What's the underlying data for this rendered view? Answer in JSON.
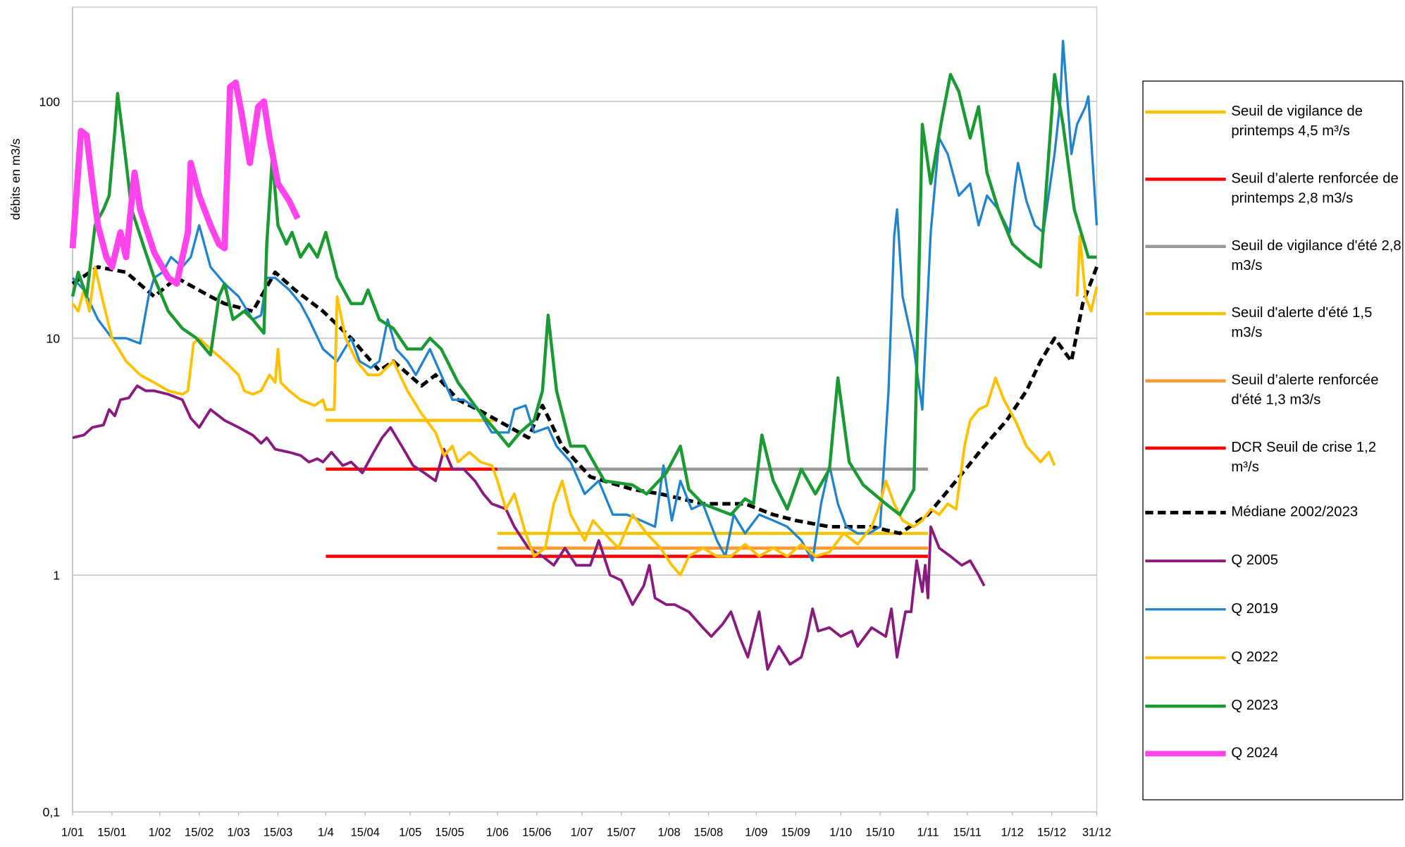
{
  "chart_data": {
    "type": "line",
    "y_label": "débits en m3/s",
    "y_log": true,
    "grid": true,
    "xlim": [
      1,
      365
    ],
    "ylim": [
      0.1,
      250
    ],
    "yticks": [
      {
        "value": 0.1,
        "label": "0,1"
      },
      1,
      10,
      100
    ],
    "xticks": [
      {
        "value": 1,
        "label": "1/01"
      },
      {
        "value": 15,
        "label": "15/01"
      },
      {
        "value": 32,
        "label": "1/02"
      },
      {
        "value": 46,
        "label": "15/02"
      },
      {
        "value": 60,
        "label": "1/03"
      },
      {
        "value": 74,
        "label": "15/03"
      },
      {
        "value": 91,
        "label": "1/4"
      },
      {
        "value": 105,
        "label": "15/04"
      },
      {
        "value": 121,
        "label": "1/05"
      },
      {
        "value": 135,
        "label": "15/05"
      },
      {
        "value": 152,
        "label": "1/06"
      },
      {
        "value": 166,
        "label": "15/06"
      },
      {
        "value": 182,
        "label": "1/07"
      },
      {
        "value": 196,
        "label": "15/07"
      },
      {
        "value": 213,
        "label": "1/08"
      },
      {
        "value": 227,
        "label": "15/08"
      },
      {
        "value": 244,
        "label": "1/09"
      },
      {
        "value": 258,
        "label": "15/09"
      },
      {
        "value": 274,
        "label": "1/10"
      },
      {
        "value": 288,
        "label": "15/10"
      },
      {
        "value": 305,
        "label": "1/11"
      },
      {
        "value": 319,
        "label": "15/11"
      },
      {
        "value": 335,
        "label": "1/12"
      },
      {
        "value": 349,
        "label": "15/12"
      },
      {
        "value": 365,
        "label": "31/12"
      }
    ],
    "series": [
      {
        "name": "Seuil de vigilance de printemps 4,5 m³/s",
        "color": "#f5c400",
        "x": [
          91,
          152
        ],
        "values": [
          4.5,
          4.5
        ]
      },
      {
        "name": "Seuil d’alerte renforcée de printemps 2,8 m3/s",
        "color": "#ff0000",
        "x": [
          91,
          152
        ],
        "values": [
          2.8,
          2.8
        ]
      },
      {
        "name": "Seuil de vigilance d'été 2,8 m3/s",
        "color": "#999999",
        "x": [
          152,
          305
        ],
        "values": [
          2.8,
          2.8
        ]
      },
      {
        "name": "Seuil d'alerte d'été 1,5 m3/s",
        "color": "#f5c400",
        "x": [
          152,
          305
        ],
        "values": [
          1.5,
          1.5
        ]
      },
      {
        "name": "Seuil d’alerte renforcée d'été 1,3 m3/s",
        "color": "#ff9933",
        "x": [
          152,
          305
        ],
        "values": [
          1.3,
          1.3
        ]
      },
      {
        "name": "DCR Seuil de crise 1,2 m³/s",
        "color": "#ff0000",
        "x": [
          91,
          305
        ],
        "values": [
          1.2,
          1.2
        ]
      },
      {
        "name": "Médiane 2002/2023",
        "color": "#000000",
        "dashed": true,
        "x": [
          1,
          10,
          20,
          30,
          38,
          50,
          55,
          65,
          73,
          80,
          90,
          100,
          110,
          115,
          125,
          130,
          138,
          145,
          155,
          163,
          168,
          175,
          185,
          200,
          210,
          225,
          240,
          250,
          258,
          270,
          285,
          295,
          305,
          315,
          325,
          333,
          340,
          345,
          350,
          356,
          360,
          365
        ],
        "values": [
          17,
          20,
          19,
          15,
          18,
          15,
          14,
          13,
          19,
          16,
          13,
          10,
          7.3,
          8,
          6.3,
          7,
          5.5,
          5,
          4.3,
          3.8,
          5.2,
          3.5,
          2.6,
          2.3,
          2.2,
          2.0,
          2.0,
          1.8,
          1.7,
          1.6,
          1.6,
          1.5,
          1.8,
          2.5,
          3.5,
          4.5,
          6,
          8,
          10,
          8,
          14,
          20
        ]
      },
      {
        "name": "Q 2005",
        "color": "#8b1a7e",
        "x": [
          1,
          5,
          8,
          12,
          14,
          16,
          18,
          21,
          24,
          27,
          30,
          35,
          40,
          43,
          46,
          50,
          55,
          60,
          65,
          68,
          70,
          73,
          78,
          82,
          85,
          88,
          90,
          93,
          97,
          100,
          104,
          108,
          111,
          114,
          118,
          122,
          126,
          130,
          133,
          136,
          140,
          144,
          147,
          150,
          155,
          158,
          163,
          168,
          172,
          176,
          180,
          185,
          188,
          192,
          196,
          200,
          204,
          206,
          208,
          212,
          215,
          220,
          225,
          228,
          232,
          235,
          238,
          241,
          245,
          248,
          252,
          256,
          260,
          262,
          264,
          266,
          270,
          274,
          278,
          280,
          285,
          290,
          292,
          294,
          297,
          299,
          301,
          303,
          304,
          305,
          306,
          309,
          313,
          317,
          320,
          323,
          325
        ],
        "values": [
          3.8,
          3.9,
          4.2,
          4.3,
          5,
          4.7,
          5.5,
          5.6,
          6.3,
          6,
          6,
          5.8,
          5.5,
          4.6,
          4.2,
          5,
          4.5,
          4.2,
          3.9,
          3.6,
          3.8,
          3.4,
          3.3,
          3.2,
          3,
          3.1,
          3,
          3.3,
          2.9,
          3,
          2.7,
          3.3,
          3.8,
          4.2,
          3.5,
          2.9,
          2.7,
          2.5,
          3.4,
          2.8,
          2.8,
          2.5,
          2.2,
          2,
          1.9,
          1.6,
          1.3,
          1.2,
          1.1,
          1.3,
          1.1,
          1.1,
          1.4,
          1,
          0.95,
          0.75,
          0.9,
          1.1,
          0.8,
          0.75,
          0.75,
          0.7,
          0.6,
          0.55,
          0.62,
          0.7,
          0.55,
          0.45,
          0.7,
          0.4,
          0.5,
          0.42,
          0.45,
          0.55,
          0.72,
          0.58,
          0.6,
          0.55,
          0.58,
          0.5,
          0.6,
          0.55,
          0.72,
          0.45,
          0.7,
          0.7,
          1.15,
          0.85,
          1.1,
          0.8,
          1.6,
          1.3,
          1.2,
          1.1,
          1.15,
          1,
          0.9
        ]
      },
      {
        "name": "Q 2019",
        "color": "#1f83d0",
        "x": [
          1,
          5,
          10,
          15,
          20,
          25,
          28,
          30,
          33,
          36,
          40,
          43,
          46,
          50,
          55,
          60,
          65,
          68,
          70,
          73,
          78,
          82,
          85,
          90,
          95,
          100,
          103,
          107,
          110,
          113,
          116,
          120,
          123,
          128,
          132,
          136,
          140,
          145,
          150,
          156,
          158,
          162,
          165,
          170,
          173,
          178,
          183,
          188,
          193,
          198,
          203,
          208,
          211,
          214,
          217,
          221,
          225,
          230,
          233,
          236,
          240,
          245,
          250,
          255,
          260,
          264,
          267,
          270,
          273,
          276,
          280,
          284,
          288,
          291,
          293,
          294,
          296,
          300,
          303,
          306,
          309,
          312,
          316,
          320,
          323,
          326,
          330,
          334,
          336,
          337,
          340,
          343,
          346,
          350,
          352,
          353,
          356,
          358,
          361,
          362,
          365
        ],
        "values": [
          18,
          16,
          12,
          10,
          10,
          9.5,
          15,
          18,
          19,
          22,
          20,
          22,
          30,
          20,
          17,
          15,
          12,
          12.5,
          18,
          18,
          16,
          14,
          12,
          9,
          8,
          10,
          8,
          7.5,
          8,
          12,
          9,
          8,
          7,
          9,
          7,
          5.5,
          5.5,
          5,
          4,
          4,
          5,
          5.2,
          4,
          4.2,
          3.5,
          3,
          2.2,
          2.5,
          1.8,
          1.8,
          1.7,
          1.6,
          2.9,
          1.7,
          2.5,
          1.9,
          2,
          1.4,
          1.2,
          1.8,
          1.5,
          1.8,
          1.7,
          1.6,
          1.4,
          1.15,
          2,
          2.9,
          2,
          1.6,
          1.5,
          1.5,
          1.6,
          6,
          27,
          35,
          15,
          9,
          5,
          28,
          70,
          60,
          40,
          45,
          30,
          40,
          35,
          28,
          45,
          55,
          38,
          30,
          28,
          60,
          100,
          180,
          60,
          80,
          95,
          105,
          30
        ]
      },
      {
        "name": "Q 2022",
        "color": "#ffc000",
        "x": [
          1,
          3,
          5,
          7,
          9,
          12,
          15,
          20,
          25,
          30,
          35,
          40,
          42,
          44,
          46,
          50,
          55,
          60,
          62,
          65,
          68,
          71,
          73,
          74,
          75,
          78,
          82,
          87,
          90,
          91,
          94,
          95,
          98,
          102,
          106,
          110,
          115,
          120,
          125,
          130,
          133,
          136,
          138,
          142,
          146,
          150,
          152,
          155,
          158,
          162,
          165,
          169,
          172,
          175,
          178,
          183,
          186,
          190,
          195,
          200,
          205,
          210,
          214,
          217,
          220,
          225,
          230,
          235,
          240,
          245,
          250,
          255,
          260,
          265,
          270,
          275,
          280,
          285,
          288,
          290,
          293,
          296,
          300,
          303,
          306,
          309,
          312,
          315,
          318,
          320,
          323,
          326,
          329,
          332,
          336,
          340,
          345,
          348,
          350,
          354,
          358,
          359,
          361,
          363,
          365
        ],
        "values": [
          14,
          13,
          16,
          13,
          20,
          14,
          10,
          8,
          7,
          6.5,
          6,
          5.8,
          6,
          9.5,
          10,
          9,
          8,
          7,
          6,
          5.8,
          6,
          7,
          6.5,
          9,
          6.5,
          6,
          5.5,
          5.2,
          5.5,
          5,
          5,
          15,
          10,
          8,
          7,
          7,
          8,
          6,
          4.8,
          4,
          3.2,
          3.5,
          3,
          3.3,
          3,
          2.9,
          2.5,
          1.9,
          2.2,
          1.5,
          1.2,
          1.3,
          2,
          2.5,
          1.8,
          1.4,
          1.7,
          1.5,
          1.3,
          1.8,
          1.5,
          1.3,
          1.1,
          1,
          1.2,
          1.3,
          1.2,
          1.2,
          1.35,
          1.2,
          1.3,
          1.2,
          1.35,
          1.2,
          1.25,
          1.5,
          1.35,
          1.6,
          2,
          2.5,
          2,
          1.7,
          1.6,
          1.7,
          1.9,
          1.8,
          2,
          1.9,
          3.5,
          4.5,
          5,
          5.2,
          6.8,
          5.5,
          4.5,
          3.5,
          3,
          3.3,
          2.9,
          null,
          15,
          27,
          15,
          13,
          16.5
        ]
      },
      {
        "name": "Q 2023",
        "color": "#1a9a32",
        "x": [
          1,
          3,
          6,
          9,
          12,
          14,
          16,
          17,
          19,
          22,
          26,
          30,
          35,
          40,
          45,
          50,
          53,
          55,
          58,
          62,
          65,
          69,
          70,
          72,
          74,
          77,
          79,
          82,
          85,
          88,
          91,
          95,
          100,
          104,
          106,
          110,
          115,
          120,
          125,
          128,
          132,
          138,
          145,
          152,
          156,
          160,
          165,
          168,
          170,
          173,
          178,
          183,
          190,
          200,
          205,
          212,
          217,
          220,
          225,
          235,
          240,
          243,
          246,
          250,
          255,
          260,
          265,
          270,
          273,
          277,
          282,
          290,
          295,
          300,
          303,
          306,
          310,
          313,
          316,
          320,
          323,
          326,
          330,
          335,
          340,
          345,
          350,
          353,
          357,
          362,
          365
        ],
        "values": [
          15,
          19,
          15,
          30,
          35,
          40,
          75,
          108,
          70,
          35,
          25,
          18,
          13,
          11,
          10,
          8.5,
          15,
          17,
          12,
          13,
          12,
          10.5,
          25,
          58,
          30,
          25,
          28,
          22,
          25,
          22,
          28,
          18,
          14,
          14,
          16,
          12,
          11,
          9,
          9,
          10,
          9,
          6.5,
          5,
          4,
          3.5,
          4,
          4.5,
          6,
          12.5,
          6,
          3.5,
          3.5,
          2.5,
          2.4,
          2.2,
          2.7,
          3.5,
          2.3,
          2,
          1.8,
          2.1,
          2,
          3.9,
          2.5,
          1.9,
          2.8,
          2.2,
          2.8,
          6.8,
          3,
          2.4,
          2,
          1.8,
          2.3,
          80,
          45,
          85,
          130,
          110,
          70,
          95,
          50,
          35,
          25,
          22,
          20,
          130,
          80,
          35,
          22,
          22
        ]
      },
      {
        "name": "Q 2024",
        "color": "#ff44ee",
        "x": [
          1,
          4,
          6,
          8,
          10,
          13,
          15,
          18,
          20,
          23,
          25,
          30,
          35,
          38,
          42,
          43,
          46,
          50,
          53,
          55,
          57,
          59,
          61,
          64,
          67,
          69,
          71,
          74,
          78,
          81
        ],
        "values": [
          24,
          75,
          72,
          45,
          30,
          22,
          20,
          28,
          22,
          50,
          35,
          23,
          18,
          17,
          28,
          55,
          40,
          30,
          25,
          24,
          115,
          120,
          90,
          55,
          95,
          100,
          70,
          45,
          38,
          32
        ]
      }
    ]
  }
}
